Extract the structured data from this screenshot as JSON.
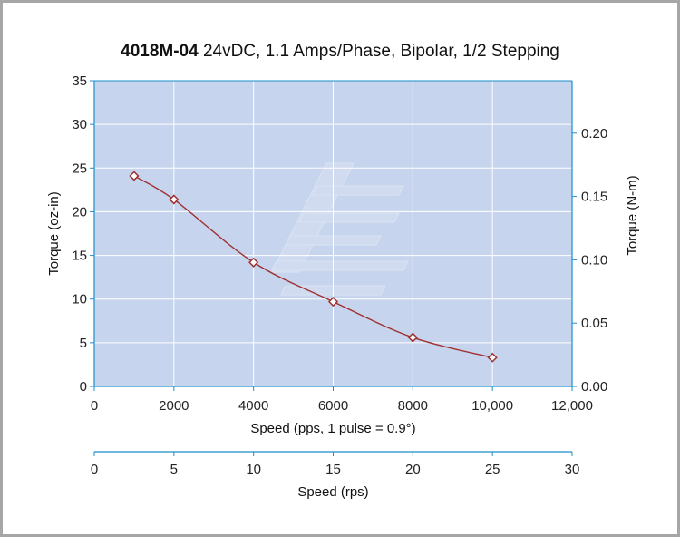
{
  "title": {
    "model": "4018M-04",
    "description": "24vDC, 1.1 Amps/Phase, Bipolar, 1/2 Stepping"
  },
  "chart_data": {
    "type": "line",
    "title": "4018M-04 24vDC, 1.1 Amps/Phase, Bipolar, 1/2 Stepping",
    "xlabel": "Speed (pps, 1 pulse = 0.9°)",
    "ylabel": "Torque (oz-in)",
    "y2label": "Torque (N-m)",
    "x2label": "Speed (rps)",
    "xlim": [
      0,
      12000
    ],
    "ylim": [
      0,
      35
    ],
    "y2lim": [
      0,
      0.2414
    ],
    "x2lim": [
      0,
      30
    ],
    "xticks": [
      0,
      2000,
      4000,
      6000,
      8000,
      10000,
      12000
    ],
    "xtick_labels": [
      "0",
      "2000",
      "4000",
      "6000",
      "8000",
      "10,000",
      "12,000"
    ],
    "yticks": [
      0,
      5,
      10,
      15,
      20,
      25,
      30,
      35
    ],
    "ytick_labels": [
      "0",
      "5",
      "10",
      "15",
      "20",
      "25",
      "30",
      "35"
    ],
    "y2ticks": [
      0,
      0.05,
      0.1,
      0.15,
      0.2
    ],
    "y2tick_labels": [
      "0.00",
      "0.05",
      "0.10",
      "0.15",
      "0.20"
    ],
    "x2ticks": [
      0,
      5,
      10,
      15,
      20,
      25,
      30
    ],
    "x2tick_labels": [
      "0",
      "5",
      "10",
      "15",
      "20",
      "25",
      "30"
    ],
    "grid": true,
    "series": [
      {
        "name": "Torque",
        "x": [
          1000,
          2000,
          4000,
          6000,
          8000,
          10000
        ],
        "values": [
          24.1,
          21.4,
          14.2,
          9.7,
          5.6,
          3.3
        ]
      }
    ],
    "colors": {
      "plot_background": "#c6d4ee",
      "grid": "#ffffff",
      "axis": "#1c8fc8",
      "line": "#a03030",
      "marker": "#a03030"
    }
  }
}
